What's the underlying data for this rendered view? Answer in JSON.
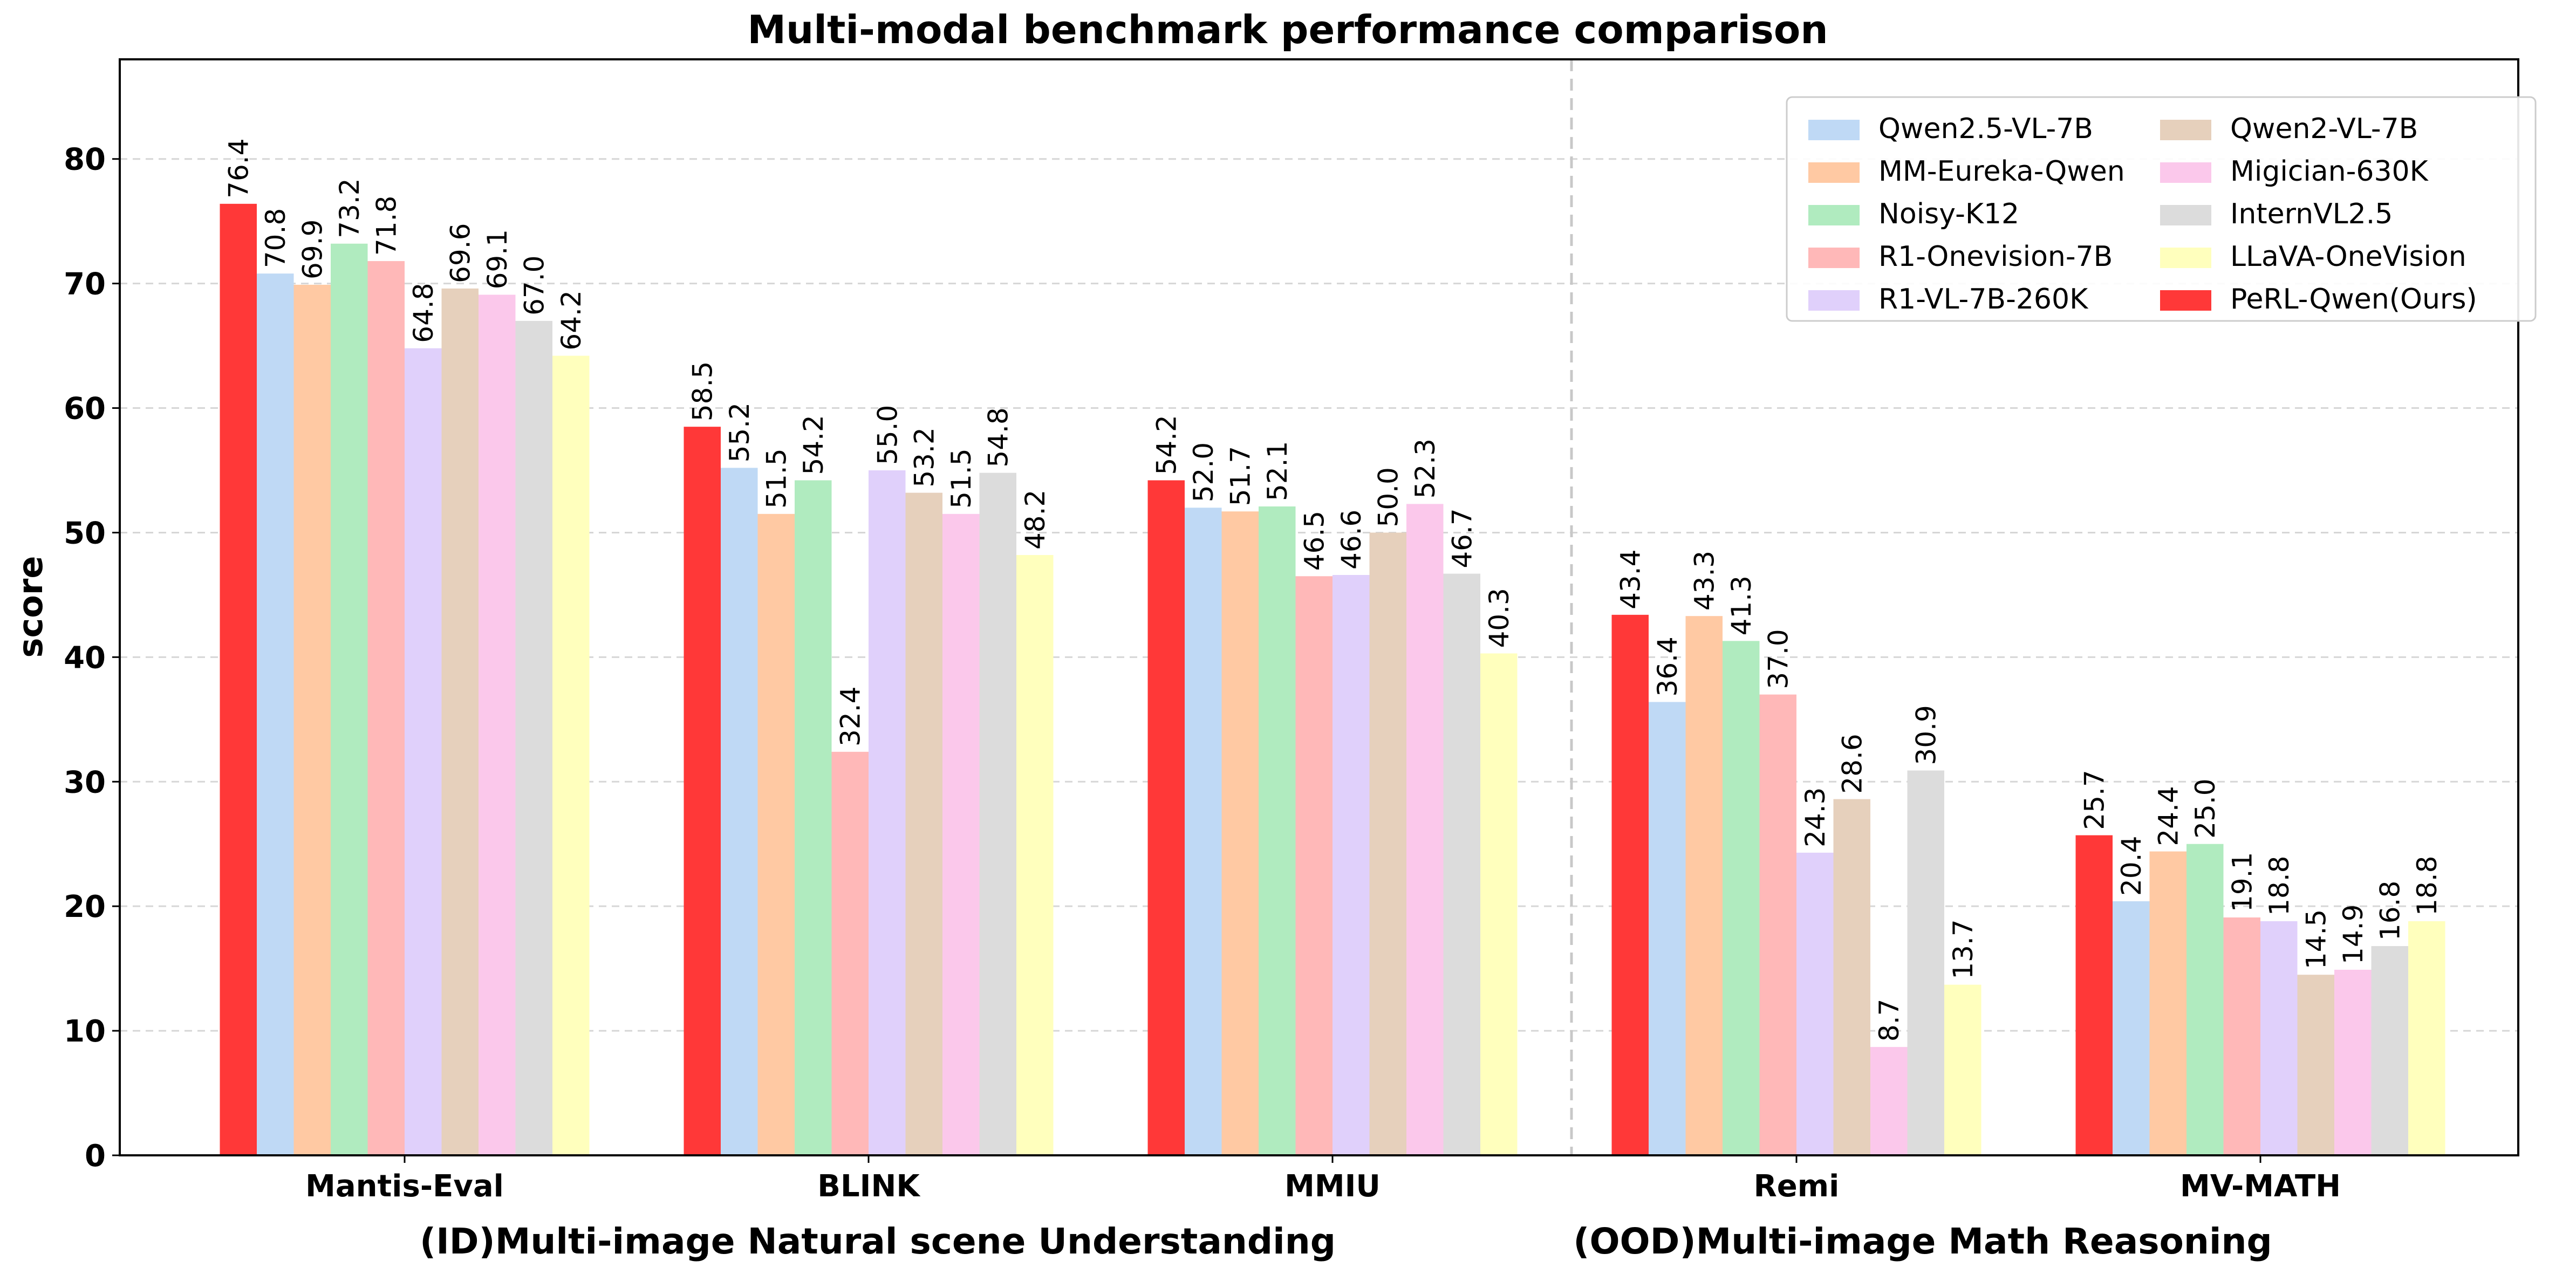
{
  "chart_data": {
    "type": "bar",
    "title": "Multi-modal benchmark performance comparison",
    "ylabel": "score",
    "ylim": [
      0,
      88
    ],
    "yticks": [
      0,
      10,
      20,
      30,
      40,
      50,
      60,
      70,
      80
    ],
    "grid": "dashed horizontal",
    "legend_position": "top-right",
    "categories": [
      "Mantis-Eval",
      "BLINK",
      "MMIU",
      "Remi",
      "MV-MATH"
    ],
    "groups": [
      {
        "label": "(ID)Multi-image Natural scene Understanding",
        "categories": [
          "Mantis-Eval",
          "BLINK",
          "MMIU"
        ]
      },
      {
        "label": "(OOD)Multi-image Math Reasoning",
        "categories": [
          "Remi",
          "MV-MATH"
        ]
      }
    ],
    "series": [
      {
        "name": "PeRL-Qwen(Ours)",
        "color": "#ff3838",
        "values": [
          76.4,
          58.5,
          54.2,
          43.4,
          25.7
        ]
      },
      {
        "name": "Qwen2.5-VL-7B",
        "color": "#bfd9f5",
        "values": [
          70.8,
          55.2,
          52.0,
          36.4,
          20.4
        ]
      },
      {
        "name": "MM-Eureka-Qwen",
        "color": "#ffc9a3",
        "values": [
          69.9,
          51.5,
          51.7,
          43.3,
          24.4
        ]
      },
      {
        "name": "Noisy-K12",
        "color": "#b0ebbf",
        "values": [
          73.2,
          54.2,
          52.1,
          41.3,
          25.0
        ]
      },
      {
        "name": "R1-Onevision-7B",
        "color": "#ffb8b8",
        "values": [
          71.8,
          32.4,
          46.5,
          37.0,
          19.1
        ]
      },
      {
        "name": "R1-VL-7B-260K",
        "color": "#e0d0fb",
        "values": [
          64.8,
          55.0,
          46.6,
          24.3,
          18.8
        ]
      },
      {
        "name": "Qwen2-VL-7B",
        "color": "#e6d0bc",
        "values": [
          69.6,
          53.2,
          50.0,
          28.6,
          14.5
        ]
      },
      {
        "name": "Migician-630K",
        "color": "#fbc8eb",
        "values": [
          69.1,
          51.5,
          52.3,
          8.7,
          14.9
        ]
      },
      {
        "name": "InternVL2.5",
        "color": "#dcdcdc",
        "values": [
          67.0,
          54.8,
          46.7,
          30.9,
          16.8
        ]
      },
      {
        "name": "LLaVA-OneVision",
        "color": "#ffffbd",
        "values": [
          64.2,
          48.2,
          40.3,
          13.7,
          18.8
        ]
      }
    ],
    "legend_order": [
      "Qwen2.5-VL-7B",
      "Qwen2-VL-7B",
      "MM-Eureka-Qwen",
      "Migician-630K",
      "Noisy-K12",
      "InternVL2.5",
      "R1-Onevision-7B",
      "LLaVA-OneVision",
      "R1-VL-7B-260K",
      "PeRL-Qwen(Ours)"
    ],
    "separator": "dashed vertical line between MMIU and Remi"
  }
}
